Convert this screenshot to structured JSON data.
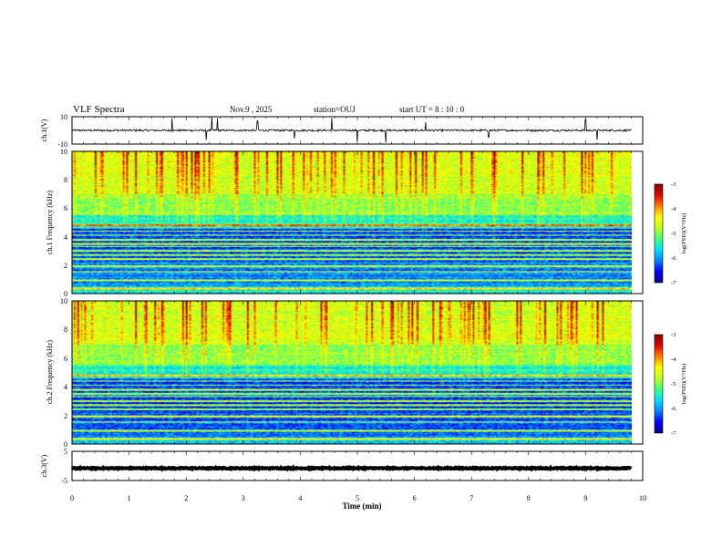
{
  "chart_data": {
    "type": "heatmap",
    "header": {
      "title": "VLF Spectra",
      "date": "Nov.9  , 2025",
      "station": "station=OUJ",
      "start": "start  UT =   8 : 10 : 0"
    },
    "panels": [
      {
        "id": "ch1-wave",
        "type": "line",
        "ylabel": "ch.1(V)",
        "ylim": [
          -10,
          10
        ],
        "yticks": [
          "10",
          "-10"
        ],
        "baseline": 0,
        "noise_amplitude": 1.2,
        "spikes": [
          {
            "t": 1.75,
            "amp": 9
          },
          {
            "t": 2.35,
            "amp": -7
          },
          {
            "t": 2.45,
            "amp": 10
          },
          {
            "t": 2.55,
            "amp": 9
          },
          {
            "t": 3.25,
            "amp": 7
          },
          {
            "t": 3.9,
            "amp": -6
          },
          {
            "t": 4.55,
            "amp": 9
          },
          {
            "t": 5.0,
            "amp": -8
          },
          {
            "t": 5.5,
            "amp": -9
          },
          {
            "t": 6.2,
            "amp": 6
          },
          {
            "t": 7.3,
            "amp": -5
          },
          {
            "t": 9.0,
            "amp": 8
          },
          {
            "t": 9.2,
            "amp": -7
          }
        ]
      },
      {
        "id": "ch1-spec",
        "type": "heatmap",
        "ylabel": "ch.1  Frequency (kHz)",
        "ylim": [
          0,
          10
        ],
        "yticks": [
          "0",
          "2",
          "4",
          "6",
          "8",
          "10"
        ],
        "colorbar": {
          "label": "log(PSD)(V²/Hz)",
          "range": [
            -7,
            -3
          ],
          "ticks": [
            "-3",
            "-4",
            "-5",
            "-6",
            "-7"
          ]
        }
      },
      {
        "id": "ch2-spec",
        "type": "heatmap",
        "ylabel": "ch.2  Frequency (kHz)",
        "ylim": [
          0,
          10
        ],
        "yticks": [
          "0",
          "2",
          "4",
          "6",
          "8",
          "10"
        ],
        "colorbar": {
          "label": "log(PSD)(V²/Hz)",
          "range": [
            -7,
            -3
          ],
          "ticks": [
            "-3",
            "-4",
            "-5",
            "-6",
            "-7"
          ]
        }
      },
      {
        "id": "ch3-wave",
        "type": "line",
        "ylabel": "ch.3(V)",
        "ylim": [
          -5,
          5
        ],
        "yticks": [
          "5",
          "-5"
        ],
        "baseline": -0.8,
        "noise_amplitude": 0.3,
        "spikes": []
      }
    ],
    "x": {
      "label": "Time  (min)",
      "range": [
        0,
        10
      ],
      "ticks": [
        "0",
        "1",
        "2",
        "3",
        "4",
        "5",
        "6",
        "7",
        "8",
        "9",
        "10"
      ],
      "data_end": 9.8
    },
    "spectrum_model": {
      "bands": [
        {
          "from": 0,
          "to": 0.5,
          "level": -5.6
        },
        {
          "from": 0.5,
          "to": 2.2,
          "level": -6.1
        },
        {
          "from": 2.2,
          "to": 4.6,
          "level": -6.3
        },
        {
          "from": 4.6,
          "to": 5.5,
          "level": -5.5
        },
        {
          "from": 5.5,
          "to": 7.0,
          "level": -4.9
        },
        {
          "from": 7.0,
          "to": 10,
          "level": -4.6
        }
      ],
      "lines_khz": [
        0.3,
        0.9,
        1.5,
        1.9,
        2.4,
        2.7,
        3.0,
        3.3,
        3.5,
        3.8,
        4.1,
        4.4,
        4.8
      ]
    },
    "colormap": [
      "#00007f",
      "#0000ff",
      "#0080ff",
      "#00e0ff",
      "#40ff80",
      "#c0ff20",
      "#ffff00",
      "#ff8000",
      "#e00000",
      "#800000"
    ]
  }
}
